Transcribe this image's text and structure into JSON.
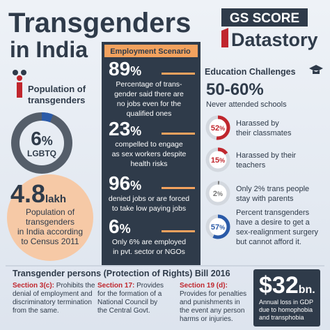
{
  "title": {
    "line1": "Transgenders",
    "line2": "in India"
  },
  "logo": {
    "top": "GS SCORE",
    "bottom": "Datastory"
  },
  "population": {
    "heading": [
      "Population of",
      "transgenders"
    ],
    "ring": {
      "value": 6,
      "unit": "%",
      "label": "LGBTQ",
      "color": "#2a5aa8"
    },
    "count": {
      "value": "4.8",
      "unit": "lakh",
      "text": [
        "Population of",
        "transgenders",
        "in India according",
        "to Census 2011"
      ]
    }
  },
  "employment": {
    "title": "Employment Scenario",
    "items": [
      {
        "value": 89,
        "unit": "%",
        "text": [
          "Percentage of trans-",
          "gender said there are",
          "no jobs even for the",
          "qualified ones"
        ]
      },
      {
        "value": 23,
        "unit": "%",
        "text": [
          "compelled to engage",
          "as sex workers despite",
          "health risks"
        ]
      },
      {
        "value": 96,
        "unit": "%",
        "text": [
          "denied jobs or are forced",
          "to take low paying jobs"
        ]
      },
      {
        "value": 6,
        "unit": "%",
        "text": [
          "Only 6% are employed",
          "in pvt. sector or NGOs"
        ]
      }
    ]
  },
  "education": {
    "title": "Education Challenges",
    "headline": "50-60%",
    "subline": "Never attended schools",
    "items": [
      {
        "value": 52,
        "unit": "%",
        "color": "#c0262d",
        "text": [
          "Harassed by",
          "their classmates"
        ]
      },
      {
        "value": 15,
        "unit": "%",
        "color": "#c0262d",
        "text": [
          "Harassed by their",
          "teachers"
        ]
      },
      {
        "value": 2,
        "unit": "%",
        "color": "#777777",
        "text": [
          "Only 2% trans people",
          "stay with parents"
        ]
      },
      {
        "value": 57,
        "unit": "%",
        "color": "#2a5aa8",
        "text": [
          "Percent transgenders",
          "have a desire to get a",
          "sex-realignment surgery",
          "but cannot afford it."
        ]
      }
    ]
  },
  "bill": {
    "title": "Transgender persons (Protection of Rights) Bill 2016",
    "sections": [
      {
        "label": "Section 3(c):",
        "text": [
          " Prohibits the",
          "denial of employment and",
          "discriminatory termination",
          "from the same."
        ]
      },
      {
        "label": "Section 17:",
        "text": [
          "  Provides",
          "for the formation of a",
          "National Council by",
          "the Central Govt."
        ]
      },
      {
        "label": "Section 19 (d):",
        "text": [
          "",
          "Provides for penalties",
          "and punishments in",
          "the event any person",
          "harms or injuries."
        ]
      }
    ]
  },
  "gdp": {
    "value": "$32",
    "unit": "bn.",
    "text": [
      "Annual loss in GDP",
      "due to homophobia",
      "and transphobia"
    ]
  }
}
